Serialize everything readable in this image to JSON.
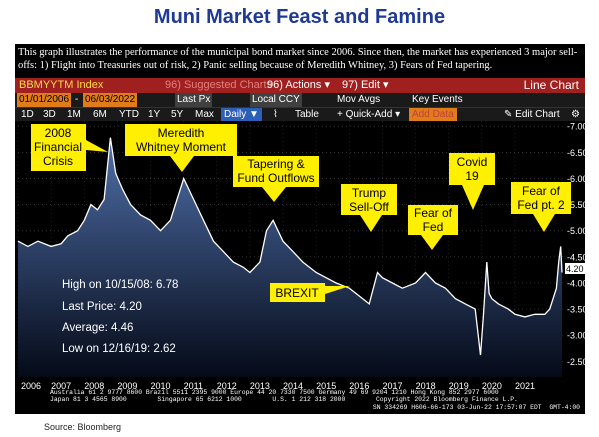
{
  "title": "Muni Market Feast and Famine",
  "description": "This graph illustrates the performance of the municipal bond market since 2006. Since then, the market has experienced 3 major sell-offs: 1) Flight into Treasuries out of risk, 2) Panic selling because of Meredith Whitney, 3) Fears of Fed tapering.",
  "toolbar": {
    "ticker": "BBMYYTM Index",
    "suggested": "96) Suggested Charts",
    "actions": "96) Actions ▾",
    "edit": "97) Edit ▾",
    "line_chart": "Line Chart",
    "start_date": "01/01/2006",
    "end_date": "06/03/2022",
    "field": "Last Px",
    "currency": "Local CCY",
    "mov_avgs": "Mov Avgs",
    "key_events": "Key Events",
    "periods": [
      "1D",
      "3D",
      "1M",
      "6M",
      "YTD",
      "1Y",
      "5Y",
      "Max"
    ],
    "daily": "Daily ▼",
    "table": "Table",
    "quick_add": "+ Quick-Add ▾",
    "add_data": "Add Data",
    "edit_chart": "✎ Edit Chart"
  },
  "stats": {
    "high": "High on 10/15/08: 6.78",
    "last": "Last Price: 4.20",
    "average": "Average: 4.46",
    "low": "Low on 12/16/19: 2.62"
  },
  "annotations": [
    "2008 Financial Crisis",
    "Meredith Whitney Moment",
    "Tapering & Fund Outflows",
    "Trump Sell-Off",
    "Fear of Fed",
    "Covid 19",
    "Fear of Fed pt. 2",
    "BREXIT"
  ],
  "footer": {
    "line1": "Australia 61 2 9777 8600 Brazil 5511 2395 9000 Europe 44 20 7330 7500 Germany 49 69 9204 1210 Hong Kong 852 2977 6000",
    "line2": "Japan 81 3 4565 8900        Singapore 65 6212 1000        U.S. 1 212 318 2000        Copyright 2022 Bloomberg Finance L.P.",
    "line3": "SN 334269 H606-66-173 03-Jun-22 17:57:07 EDT  GMT-4:00"
  },
  "source": "Source: Bloomberg",
  "colors": {
    "title": "#1f3a93",
    "annotation_bg": "#ffef00",
    "area_top": "#4f6fa8",
    "area_bottom": "#050a18",
    "line": "#ffffff"
  },
  "chart_data": {
    "type": "area",
    "xlim": [
      2006.0,
      2022.45
    ],
    "ylim": [
      2.2,
      7.1
    ],
    "y_ticks": [
      2.5,
      3.0,
      3.5,
      4.0,
      4.5,
      5.0,
      5.5,
      6.0,
      6.5,
      7.0
    ],
    "y_tick_labels": [
      "2.50",
      "3.00",
      "3.50",
      "4.00",
      "4.50",
      "5.00",
      "5.50",
      "6.00",
      "6.50",
      "7.00"
    ],
    "x_tick_labels": [
      "2006",
      "2007",
      "2008",
      "2009",
      "2010",
      "2011",
      "2012",
      "2013",
      "2014",
      "2015",
      "2016",
      "2017",
      "2018",
      "2019",
      "2020",
      "2021"
    ],
    "last_value_label": "4.20",
    "series": [
      {
        "x": [
          2006.0,
          2006.3,
          2006.6,
          2007.0,
          2007.3,
          2007.5,
          2007.8,
          2008.0,
          2008.2,
          2008.4,
          2008.6,
          2008.79,
          2008.95,
          2009.15,
          2009.4,
          2009.7,
          2010.0,
          2010.3,
          2010.6,
          2010.8,
          2011.0,
          2011.3,
          2011.6,
          2011.9,
          2012.2,
          2012.5,
          2012.8,
          2013.0,
          2013.3,
          2013.5,
          2013.7,
          2014.0,
          2014.3,
          2014.6,
          2015.0,
          2015.3,
          2015.6,
          2016.0,
          2016.4,
          2016.6,
          2016.85,
          2017.0,
          2017.3,
          2017.6,
          2018.0,
          2018.3,
          2018.6,
          2018.9,
          2019.2,
          2019.5,
          2019.8,
          2019.96,
          2020.05,
          2020.15,
          2020.22,
          2020.3,
          2020.5,
          2020.8,
          2021.0,
          2021.3,
          2021.6,
          2021.9,
          2022.05,
          2022.15,
          2022.25,
          2022.32,
          2022.38,
          2022.42
        ],
        "y": [
          4.8,
          4.7,
          4.8,
          4.7,
          4.75,
          4.9,
          5.0,
          5.2,
          5.5,
          5.4,
          5.6,
          6.78,
          6.1,
          5.8,
          5.5,
          5.3,
          5.2,
          5.0,
          5.2,
          5.6,
          6.0,
          5.6,
          5.2,
          4.8,
          4.6,
          4.4,
          4.3,
          4.2,
          4.4,
          5.0,
          5.2,
          4.8,
          4.6,
          4.4,
          4.2,
          4.1,
          4.0,
          3.9,
          3.7,
          3.6,
          4.2,
          4.1,
          4.0,
          3.9,
          4.0,
          4.2,
          4.0,
          3.9,
          3.7,
          3.6,
          3.5,
          2.62,
          3.4,
          4.4,
          3.8,
          3.7,
          3.6,
          3.5,
          3.4,
          3.35,
          3.4,
          3.4,
          3.5,
          3.7,
          3.9,
          4.4,
          4.7,
          4.2
        ]
      }
    ]
  }
}
